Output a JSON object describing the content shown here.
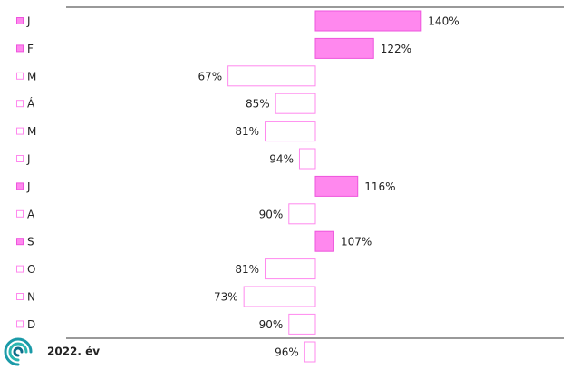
{
  "chart_data": {
    "type": "bar",
    "orientation": "horizontal",
    "categories": [
      "J",
      "F",
      "M",
      "Á",
      "M",
      "J",
      "J",
      "A",
      "S",
      "O",
      "N",
      "D"
    ],
    "values": [
      140,
      122,
      67,
      85,
      81,
      94,
      116,
      90,
      107,
      81,
      73,
      90
    ],
    "value_labels": [
      "140%",
      "122%",
      "67%",
      "85%",
      "81%",
      "94%",
      "116%",
      "90%",
      "107%",
      "81%",
      "73%",
      "90%"
    ],
    "total": {
      "label": "2022. év",
      "value": 96,
      "value_label": "96%"
    },
    "base": 100,
    "xlim": [
      6,
      194
    ],
    "color": "#ff88ee",
    "edge_color": "#ee55dd"
  }
}
